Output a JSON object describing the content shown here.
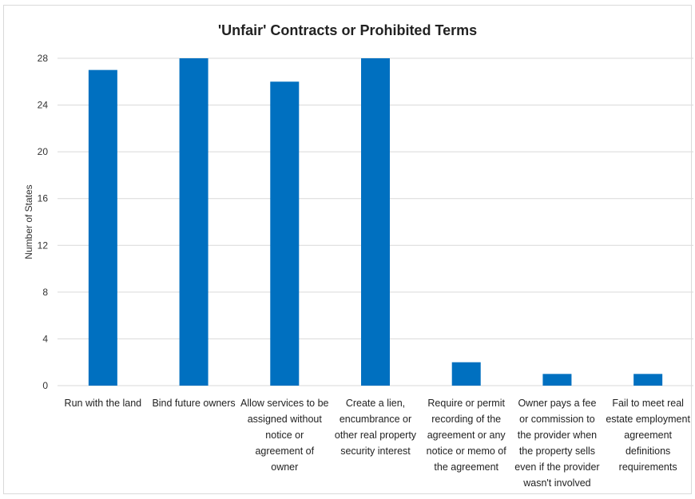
{
  "chart_data": {
    "type": "bar",
    "title": "'Unfair' Contracts or Prohibited Terms",
    "ylabel": "Number of States",
    "ylim": [
      0,
      28
    ],
    "yticks": [
      0,
      4,
      8,
      12,
      16,
      20,
      24,
      28
    ],
    "grid": true,
    "bar_color": "#0070c0",
    "categories": [
      [
        "Run with the land"
      ],
      [
        "Bind future owners"
      ],
      [
        "Allow services to be",
        "assigned without",
        "notice or",
        "agreement of",
        "owner"
      ],
      [
        "Create a lien,",
        "encumbrance or",
        "other real property",
        "security interest"
      ],
      [
        "Require or permit",
        "recording of the",
        "agreement or any",
        "notice or memo of",
        "the agreement"
      ],
      [
        "Owner pays a fee",
        "or commission to",
        "the provider when",
        "the property sells",
        "even if the provider",
        "wasn't involved"
      ],
      [
        "Fail to meet real",
        "estate employment",
        "agreement",
        "definitions",
        "requirements"
      ]
    ],
    "values": [
      27,
      28,
      26,
      28,
      2,
      1,
      1
    ]
  }
}
